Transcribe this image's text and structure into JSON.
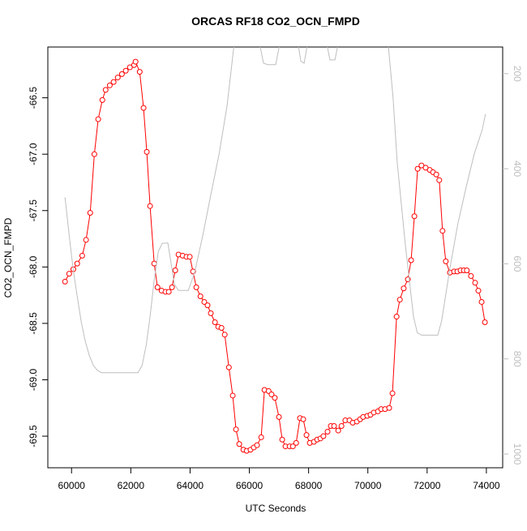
{
  "chart_data": {
    "type": "line",
    "title": "ORCAS RF18 CO2_OCN_FMPD",
    "xlabel": "UTC Seconds",
    "ylabel": "CO2_OCN_FMPD",
    "xlim": [
      59200,
      74550
    ],
    "ylim": [
      -69.78,
      -66.05
    ],
    "y2lim": [
      1029,
      144
    ],
    "xticks": [
      60000,
      62000,
      64000,
      66000,
      68000,
      70000,
      72000,
      74000
    ],
    "yticks": [
      -69.5,
      {
        "value": -69,
        "label": "-69.0"
      },
      -68.5,
      {
        "value": -68,
        "label": "-68.0"
      },
      -67.5,
      {
        "value": -67,
        "label": "-67.0"
      },
      -66.5
    ],
    "y2ticks": [
      200,
      400,
      600,
      800,
      1000
    ],
    "y2color": "#bebebe",
    "series": [
      {
        "color": "#ff0000",
        "marker": "circle",
        "x": [
          59780,
          59920,
          60060,
          60190,
          60360,
          60490,
          60630,
          60770,
          60900,
          61040,
          61150,
          61290,
          61420,
          61560,
          61700,
          61830,
          61970,
          62110,
          62160,
          62300,
          62430,
          62540,
          62650,
          62790,
          62900,
          63040,
          63170,
          63280,
          63390,
          63500,
          63610,
          63750,
          63880,
          63990,
          64100,
          64210,
          64350,
          64480,
          64590,
          64700,
          64840,
          64950,
          65060,
          65170,
          65310,
          65440,
          65550,
          65660,
          65800,
          65910,
          66040,
          66150,
          66260,
          66400,
          66510,
          66650,
          66750,
          66860,
          67000,
          67110,
          67220,
          67360,
          67470,
          67580,
          67710,
          67820,
          67930,
          68040,
          68180,
          68290,
          68400,
          68500,
          68640,
          68750,
          68860,
          69000,
          69110,
          69240,
          69380,
          69490,
          69630,
          69740,
          69840,
          69980,
          70090,
          70200,
          70340,
          70450,
          70580,
          70720,
          70830,
          70970,
          71080,
          71210,
          71350,
          71460,
          71570,
          71680,
          71810,
          71950,
          72090,
          72200,
          72310,
          72410,
          72520,
          72630,
          72770,
          72910,
          73020,
          73130,
          73240,
          73340,
          73480,
          73620,
          73730,
          73840,
          73950
        ],
        "values": [
          -68.13,
          -68.06,
          -68.02,
          -67.97,
          -67.9,
          -67.76,
          -67.52,
          -67.0,
          -66.69,
          -66.52,
          -66.43,
          -66.39,
          -66.36,
          -66.32,
          -66.29,
          -66.26,
          -66.23,
          -66.21,
          -66.18,
          -66.27,
          -66.59,
          -66.98,
          -67.46,
          -67.97,
          -68.18,
          -68.21,
          -68.22,
          -68.22,
          -68.18,
          -68.03,
          -67.89,
          -67.9,
          -67.91,
          -67.91,
          -68.04,
          -68.18,
          -68.26,
          -68.31,
          -68.34,
          -68.41,
          -68.49,
          -68.53,
          -68.54,
          -68.6,
          -68.89,
          -69.14,
          -69.44,
          -69.57,
          -69.62,
          -69.63,
          -69.62,
          -69.6,
          -69.58,
          -69.51,
          -69.09,
          -69.1,
          -69.13,
          -69.16,
          -69.33,
          -69.53,
          -69.59,
          -69.59,
          -69.59,
          -69.56,
          -69.34,
          -69.35,
          -69.49,
          -69.56,
          -69.55,
          -69.53,
          -69.52,
          -69.5,
          -69.46,
          -69.41,
          -69.41,
          -69.45,
          -69.41,
          -69.36,
          -69.36,
          -69.38,
          -69.37,
          -69.35,
          -69.33,
          -69.32,
          -69.31,
          -69.29,
          -69.28,
          -69.26,
          -69.26,
          -69.25,
          -69.12,
          -68.44,
          -68.29,
          -68.19,
          -68.11,
          -67.94,
          -67.55,
          -67.13,
          -67.1,
          -67.12,
          -67.14,
          -67.16,
          -67.18,
          -67.23,
          -67.68,
          -67.95,
          -68.05,
          -68.04,
          -68.04,
          -68.03,
          -68.03,
          -68.03,
          -68.08,
          -68.14,
          -68.21,
          -68.31,
          -68.49
        ]
      },
      {
        "color": "#bebebe",
        "axis": "y2",
        "x": [
          59780,
          59920,
          60050,
          60190,
          60330,
          60460,
          60600,
          60740,
          60870,
          61010,
          62240,
          62380,
          62520,
          62650,
          62790,
          62930,
          63060,
          63250,
          63340,
          63470,
          63610,
          63940,
          64160,
          64430,
          64700,
          64980,
          65250,
          65520,
          66290,
          66480,
          66620,
          66890,
          67080,
          67600,
          67740,
          67850,
          68010,
          68560,
          68720,
          68890,
          69050,
          70660,
          70850,
          70990,
          71260,
          71540,
          71670,
          71810,
          72360,
          72490,
          72770,
          73040,
          73320,
          73590,
          73860,
          73970
        ],
        "values": [
          460,
          540,
          609,
          668,
          723,
          762,
          793,
          814,
          824,
          829,
          829,
          814,
          771,
          711,
          634,
          574,
          557,
          556,
          591,
          643,
          656,
          656,
          617,
          540,
          455,
          369,
          267,
          120,
          120,
          178,
          181,
          181,
          120,
          120,
          174,
          178,
          120,
          120,
          171,
          171,
          120,
          120,
          250,
          386,
          557,
          711,
          745,
          750,
          750,
          720,
          609,
          515,
          438,
          369,
          318,
          285
        ]
      }
    ]
  }
}
